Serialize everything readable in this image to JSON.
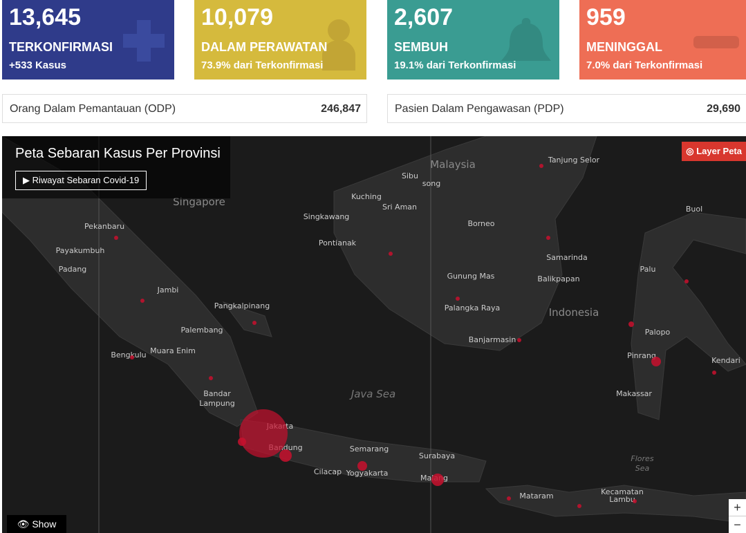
{
  "cards": [
    {
      "value": "13,645",
      "label": "TERKONFIRMASI",
      "note": "+533 Kasus"
    },
    {
      "value": "10,079",
      "label": "DALAM PERAWATAN",
      "note": "73.9% dari Terkonfirmasi"
    },
    {
      "value": "2,607",
      "label": "SEMBUH",
      "note": "19.1% dari Terkonfirmasi"
    },
    {
      "value": "959",
      "label": "MENINGGAL",
      "note": "7.0% dari Terkonfirmasi"
    }
  ],
  "stats": [
    {
      "label": "Orang Dalam Pemantauan (ODP)",
      "value": "246,847"
    },
    {
      "label": "Pasien Dalam Pengawasan (PDP)",
      "value": "29,690"
    }
  ],
  "map": {
    "title": "Peta Sebaran Kasus Per Provinsi",
    "history_button": "Riwayat Sebaran Covid-19",
    "layer_button": "Layer Peta",
    "show_button": "Show",
    "zoom_in": "+",
    "zoom_out": "−",
    "places": [
      "Malaysia",
      "Tanjung Selor",
      "Sibu",
      "song",
      "Kuching",
      "Sri Aman",
      "Singkawang",
      "Borneo",
      "Pontianak",
      "Singapore",
      "Pekanbaru",
      "Payakumbuh",
      "Padang",
      "Jambi",
      "Pangkalpinang",
      "Palembang",
      "Muara Enim",
      "Bengkulu",
      "Bandar",
      "Lampung",
      "Jakarta",
      "Bandung",
      "Semarang",
      "Cilacap",
      "Yogyakarta",
      "Surabaya",
      "Malang",
      "Java Sea",
      "Samarinda",
      "Balikpapan",
      "Gunung Mas",
      "Palangka Raya",
      "Indonesia",
      "Banjarmasin",
      "Buol",
      "Palu",
      "Palopo",
      "Pinrang",
      "Kendari",
      "Makassar",
      "Flores",
      "Sea",
      "Mataram",
      "Kecamatan",
      "Lambu"
    ]
  }
}
